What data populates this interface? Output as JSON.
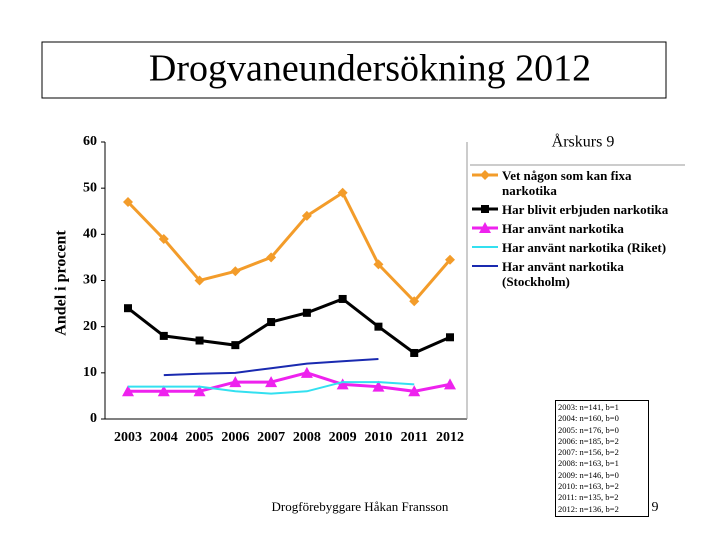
{
  "chart_data": {
    "type": "line",
    "title": "Drogvaneundersökning 2012",
    "subtitle": "Årskurs 9",
    "y_label": "Andel i procent",
    "categories": [
      "2003",
      "2004",
      "2005",
      "2006",
      "2007",
      "2008",
      "2009",
      "2010",
      "2011",
      "2012"
    ],
    "series": [
      {
        "name": "Vet någon som kan fixa narkotika",
        "color": "#f39c2a",
        "marker": "diamond",
        "values": [
          47,
          39,
          30,
          32,
          35,
          44,
          49,
          33.5,
          25.5,
          34.5
        ]
      },
      {
        "name": "Har blivit erbjuden narkotika",
        "color": "#000000",
        "marker": "square",
        "values": [
          24,
          18,
          17,
          16,
          21,
          23,
          26,
          20,
          14.3,
          17.7
        ]
      },
      {
        "name": "Har använt narkotika",
        "color": "#ee22ee",
        "marker": "triangle",
        "values": [
          6,
          6,
          6,
          8,
          8,
          10,
          7.5,
          7,
          6,
          7.5
        ]
      },
      {
        "name": "Har använt narkotika (Riket)",
        "color": "#33e0f0",
        "values": [
          7,
          7,
          7,
          6,
          5.5,
          6,
          8,
          8,
          7.5,
          null
        ]
      },
      {
        "name": "Har använt narkotika (Stockholm)",
        "color": "#1a2ab0",
        "values": [
          null,
          9.5,
          9.8,
          10,
          11,
          12,
          12.5,
          13,
          null,
          null
        ]
      }
    ],
    "ylim": [
      0,
      60
    ],
    "yticks": [
      0,
      10,
      20,
      30,
      40,
      50,
      60
    ]
  },
  "notes": [
    "2003: n=141, b=1",
    "2004: n=160, b=0",
    "2005: n=176, b=0",
    "2006: n=185, b=2",
    "2007: n=156, b=2",
    "2008: n=163, b=1",
    "2009: n=146, b=0",
    "2010: n=163, b=2",
    "2011: n=135, b=2",
    "2012: n=136, b=2"
  ],
  "footer": "Drogförebyggare Håkan Fransson",
  "page_number": "9"
}
